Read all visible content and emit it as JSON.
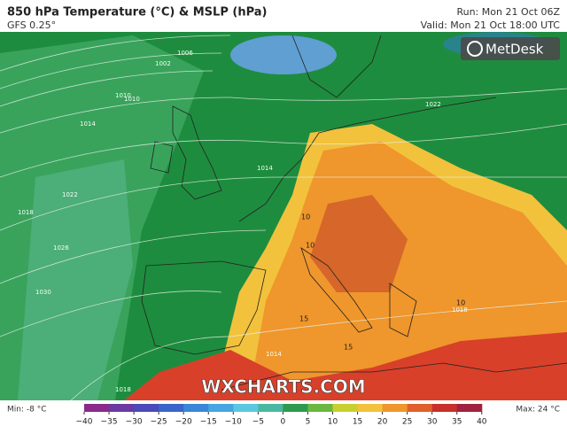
{
  "header": {
    "title": "850 hPa Temperature (°C) & MSLP (hPa)",
    "model": "GFS 0.25°",
    "run": "Run: Mon 21 Oct 06Z",
    "valid": "Valid: Mon 21 Oct 18:00 UTC",
    "brand": "MetDesk"
  },
  "map": {
    "watermark": "WXCHARTS.COM",
    "isobar_labels": [
      "1002",
      "1006",
      "1010",
      "1014",
      "1018",
      "1022",
      "1026",
      "1030",
      "1010",
      "1014",
      "1022",
      "1018",
      "1014",
      "1018"
    ],
    "temp_labels": [
      "10",
      "10",
      "15",
      "10",
      "15"
    ]
  },
  "legend": {
    "min": "Min: -8 °C",
    "max": "Max: 24 °C",
    "ticks": [
      "−40",
      "−35",
      "−30",
      "−25",
      "−20",
      "−15",
      "−10",
      "−5",
      "0",
      "5",
      "10",
      "15",
      "20",
      "25",
      "30",
      "35",
      "40"
    ]
  }
}
